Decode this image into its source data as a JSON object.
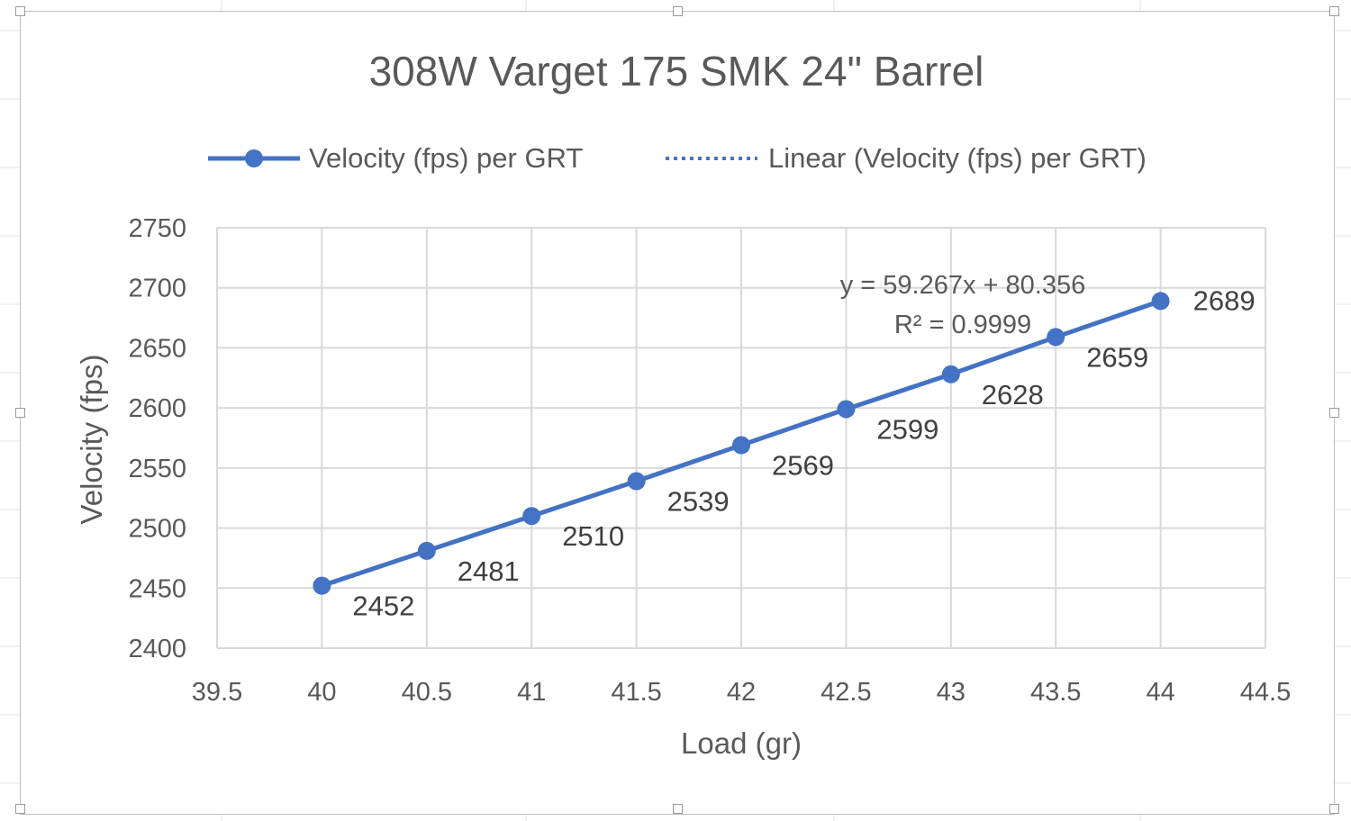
{
  "chart_data": {
    "type": "line",
    "title": "308W Varget 175 SMK 24\" Barrel",
    "xlabel": "Load (gr)",
    "ylabel": "Velocity (fps)",
    "xlim": [
      39.5,
      44.5
    ],
    "ylim": [
      2400,
      2750
    ],
    "xticks": [
      "39.5",
      "40",
      "40.5",
      "41",
      "41.5",
      "42",
      "42.5",
      "43",
      "43.5",
      "44",
      "44.5"
    ],
    "yticks": [
      "2400",
      "2450",
      "2500",
      "2550",
      "2600",
      "2650",
      "2700",
      "2750"
    ],
    "grid": true,
    "legend_position": "top",
    "series": [
      {
        "name": "Velocity (fps) per GRT",
        "color": "#4472c4",
        "marker": "circle",
        "x": [
          40,
          40.5,
          41,
          41.5,
          42,
          42.5,
          43,
          43.5,
          44
        ],
        "y": [
          2452,
          2481,
          2510,
          2539,
          2569,
          2599,
          2628,
          2659,
          2689
        ],
        "labels": [
          "2452",
          "2481",
          "2510",
          "2539",
          "2569",
          "2599",
          "2628",
          "2659",
          "2689"
        ]
      }
    ],
    "trendline": {
      "name": "Linear (Velocity (fps) per GRT)",
      "type": "linear",
      "style": "dotted",
      "color": "#4472c4",
      "slope": 59.267,
      "intercept": 80.356,
      "equation": "y = 59.267x + 80.356",
      "r_squared": "R² = 0.9999"
    }
  }
}
